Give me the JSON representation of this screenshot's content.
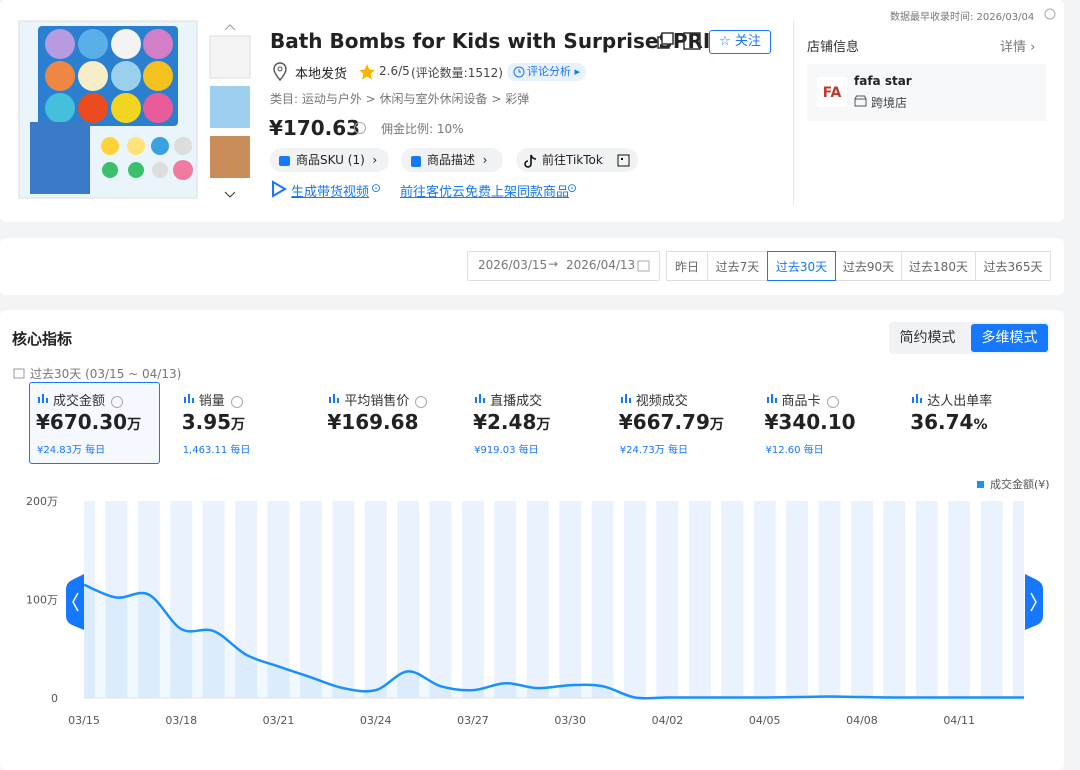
{
  "header": {
    "update_time": "数据最早收录时间: 2026/03/04"
  },
  "product": {
    "title": "Bath Bombs for Kids with SurpriseSPRI",
    "follow": "关注",
    "shipping": "本地发货",
    "rating": "2.6/5",
    "reviews": "(评论数量:1512)",
    "review_analysis": "评论分析",
    "category": "类目: 运动与户外 > 休闲与室外休闲设备 > 彩弹",
    "price": "¥170.63",
    "commission": "佣金比例: 10%",
    "buttons": [
      "商品SKU (1)",
      "商品描述",
      "前往TikTok"
    ],
    "links": [
      "生成带货视频",
      "前往客优云免费上架同款商品"
    ]
  },
  "shop": {
    "label": "店铺信息",
    "detail": "详情",
    "name": "fafa star",
    "type": "跨境店"
  },
  "date_filter": {
    "start": "2026/03/15",
    "end": "2026/04/13",
    "tabs": [
      "昨日",
      "过去7天",
      "过去30天",
      "过去90天",
      "过去180天",
      "过去365天"
    ],
    "active": 2
  },
  "metrics": {
    "title": "核心指标",
    "modes": [
      "简约模式",
      "多维模式"
    ],
    "active_mode": 1,
    "period": "过去30天 (03/15 ~ 04/13)",
    "items": [
      {
        "label": "成交金额",
        "value": "¥670.30",
        "unit": "万",
        "daily": "¥24.83万 每日",
        "help": true
      },
      {
        "label": "销量",
        "value": "3.95",
        "unit": "万",
        "daily": "1,463.11 每日",
        "help": true
      },
      {
        "label": "平均销售价",
        "value": "¥169.68",
        "help": true
      },
      {
        "label": "直播成交",
        "value": "¥2.48",
        "unit": "万",
        "daily": "¥919.03 每日"
      },
      {
        "label": "视频成交",
        "value": "¥667.79",
        "unit": "万",
        "daily": "¥24.73万 每日"
      },
      {
        "label": "商品卡",
        "value": "¥340.10",
        "daily": "¥12.60 每日",
        "help": true
      },
      {
        "label": "达人出单率",
        "value": "36.74",
        "unit": "%"
      }
    ]
  },
  "chart_data": {
    "type": "area",
    "categories": [
      "03/15",
      null,
      null,
      "03/18",
      null,
      null,
      "03/21",
      null,
      null,
      "03/24",
      null,
      null,
      "03/27",
      null,
      null,
      "03/30",
      null,
      null,
      "04/02",
      null,
      null,
      "04/05",
      null,
      null,
      "04/08",
      null,
      null,
      "04/11",
      null,
      null
    ],
    "series": [
      {
        "name": "成交金额(¥)",
        "color": "#1890ff",
        "values": [
          115,
          102,
          105,
          70,
          68,
          44,
          32,
          21,
          10,
          8,
          27,
          12,
          8,
          15,
          10,
          13,
          12,
          0.5,
          0.5,
          0.5,
          0.5,
          0.5,
          1,
          1.5,
          1,
          0.5,
          0.5,
          0.5,
          0.5,
          0.5
        ]
      }
    ],
    "ylim": [
      0,
      200
    ],
    "yticks": [
      0,
      {
        "value": 100,
        "label": "100万"
      },
      {
        "value": 200,
        "label": "200万"
      }
    ],
    "legend": "top-right"
  }
}
